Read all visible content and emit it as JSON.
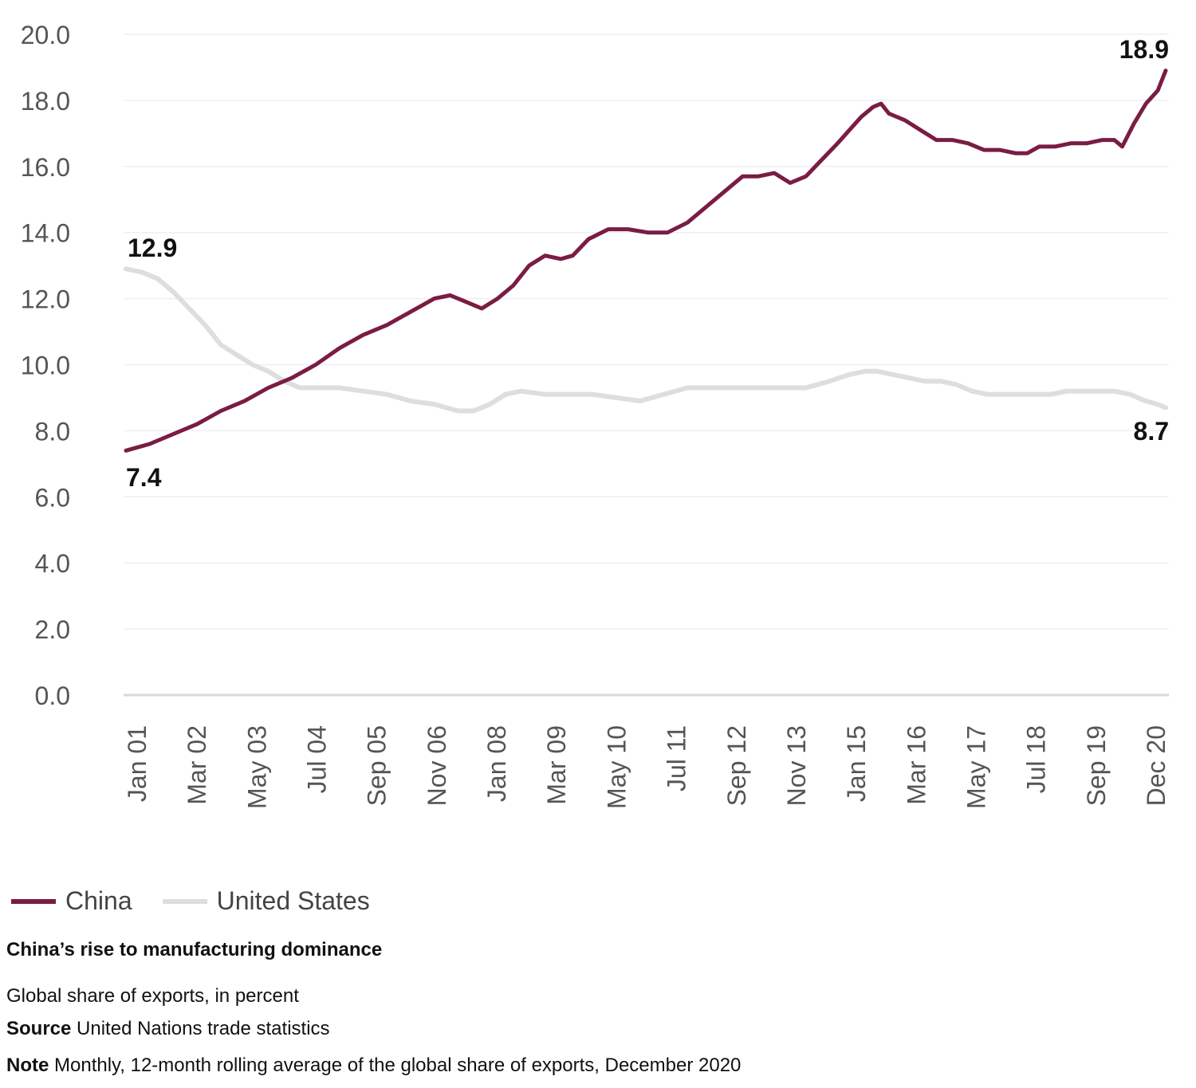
{
  "chart_data": {
    "type": "line",
    "title": "China’s rise to manufacturing dominance",
    "subtitle": "Global share of exports, in percent",
    "ylim": [
      0,
      20
    ],
    "yticks": [
      "0.0",
      "2.0",
      "4.0",
      "6.0",
      "8.0",
      "10.0",
      "12.0",
      "14.0",
      "16.0",
      "18.0",
      "20.0"
    ],
    "xticks": [
      "Jan 01",
      "Mar 02",
      "May 03",
      "Jul 04",
      "Sep 05",
      "Nov 06",
      "Jan 08",
      "Mar 09",
      "May 10",
      "Jul 11",
      "Sep 12",
      "Nov 13",
      "Jan 15",
      "Mar 16",
      "May 17",
      "Jul 18",
      "Sep 19",
      "Dec 20"
    ],
    "grid": true,
    "series": [
      {
        "name": "China",
        "color": "#7a1c44",
        "points": [
          [
            0,
            7.4
          ],
          [
            6,
            7.6
          ],
          [
            12,
            7.9
          ],
          [
            18,
            8.2
          ],
          [
            24,
            8.6
          ],
          [
            30,
            8.9
          ],
          [
            36,
            9.3
          ],
          [
            42,
            9.6
          ],
          [
            48,
            10.0
          ],
          [
            54,
            10.5
          ],
          [
            60,
            10.9
          ],
          [
            66,
            11.2
          ],
          [
            72,
            11.6
          ],
          [
            78,
            12.0
          ],
          [
            82,
            12.1
          ],
          [
            86,
            11.9
          ],
          [
            90,
            11.7
          ],
          [
            94,
            12.0
          ],
          [
            98,
            12.4
          ],
          [
            102,
            13.0
          ],
          [
            106,
            13.3
          ],
          [
            110,
            13.2
          ],
          [
            113,
            13.3
          ],
          [
            117,
            13.8
          ],
          [
            122,
            14.1
          ],
          [
            127,
            14.1
          ],
          [
            132,
            14.0
          ],
          [
            137,
            14.0
          ],
          [
            142,
            14.3
          ],
          [
            147,
            14.8
          ],
          [
            152,
            15.3
          ],
          [
            156,
            15.7
          ],
          [
            160,
            15.7
          ],
          [
            164,
            15.8
          ],
          [
            168,
            15.5
          ],
          [
            172,
            15.7
          ],
          [
            176,
            16.2
          ],
          [
            180,
            16.7
          ],
          [
            183,
            17.1
          ],
          [
            186,
            17.5
          ],
          [
            189,
            17.8
          ],
          [
            191,
            17.9
          ],
          [
            193,
            17.6
          ],
          [
            197,
            17.4
          ],
          [
            201,
            17.1
          ],
          [
            205,
            16.8
          ],
          [
            209,
            16.8
          ],
          [
            213,
            16.7
          ],
          [
            217,
            16.5
          ],
          [
            221,
            16.5
          ],
          [
            225,
            16.4
          ],
          [
            228,
            16.4
          ],
          [
            231,
            16.6
          ],
          [
            235,
            16.6
          ],
          [
            239,
            16.7
          ],
          [
            243,
            16.7
          ],
          [
            247,
            16.8
          ],
          [
            250,
            16.8
          ],
          [
            252,
            16.6
          ],
          [
            255,
            17.3
          ],
          [
            258,
            17.9
          ],
          [
            261,
            18.3
          ],
          [
            263,
            18.9
          ]
        ]
      },
      {
        "name": "United States",
        "color": "#dedede",
        "points": [
          [
            0,
            12.9
          ],
          [
            4,
            12.8
          ],
          [
            8,
            12.6
          ],
          [
            12,
            12.2
          ],
          [
            16,
            11.7
          ],
          [
            20,
            11.2
          ],
          [
            24,
            10.6
          ],
          [
            28,
            10.3
          ],
          [
            32,
            10.0
          ],
          [
            36,
            9.8
          ],
          [
            40,
            9.5
          ],
          [
            44,
            9.3
          ],
          [
            48,
            9.3
          ],
          [
            54,
            9.3
          ],
          [
            60,
            9.2
          ],
          [
            66,
            9.1
          ],
          [
            72,
            8.9
          ],
          [
            78,
            8.8
          ],
          [
            84,
            8.6
          ],
          [
            88,
            8.6
          ],
          [
            92,
            8.8
          ],
          [
            96,
            9.1
          ],
          [
            100,
            9.2
          ],
          [
            106,
            9.1
          ],
          [
            112,
            9.1
          ],
          [
            118,
            9.1
          ],
          [
            124,
            9.0
          ],
          [
            130,
            8.9
          ],
          [
            136,
            9.1
          ],
          [
            142,
            9.3
          ],
          [
            148,
            9.3
          ],
          [
            154,
            9.3
          ],
          [
            160,
            9.3
          ],
          [
            166,
            9.3
          ],
          [
            172,
            9.3
          ],
          [
            178,
            9.5
          ],
          [
            183,
            9.7
          ],
          [
            187,
            9.8
          ],
          [
            190,
            9.8
          ],
          [
            194,
            9.7
          ],
          [
            198,
            9.6
          ],
          [
            202,
            9.5
          ],
          [
            206,
            9.5
          ],
          [
            210,
            9.4
          ],
          [
            214,
            9.2
          ],
          [
            218,
            9.1
          ],
          [
            222,
            9.1
          ],
          [
            226,
            9.1
          ],
          [
            230,
            9.1
          ],
          [
            234,
            9.1
          ],
          [
            238,
            9.2
          ],
          [
            242,
            9.2
          ],
          [
            246,
            9.2
          ],
          [
            250,
            9.2
          ],
          [
            254,
            9.1
          ],
          [
            258,
            8.9
          ],
          [
            261,
            8.8
          ],
          [
            263,
            8.7
          ]
        ]
      }
    ],
    "annotations": [
      {
        "text": "12.9",
        "series": "United States",
        "position": "start"
      },
      {
        "text": "7.4",
        "series": "China",
        "position": "start"
      },
      {
        "text": "18.9",
        "series": "China",
        "position": "end"
      },
      {
        "text": "8.7",
        "series": "United States",
        "position": "end"
      }
    ]
  },
  "legend": {
    "items": [
      {
        "label": "China",
        "color": "#7a1c44"
      },
      {
        "label": "United States",
        "color": "#dedede"
      }
    ]
  },
  "caption": {
    "title": "China’s rise to manufacturing dominance",
    "subtitle": "Global share of exports, in percent",
    "source_label": "Source",
    "source_text": "United Nations trade statistics",
    "note_label": "Note",
    "note_text": "Monthly, 12-month rolling average of the global share of exports, December 2020"
  }
}
